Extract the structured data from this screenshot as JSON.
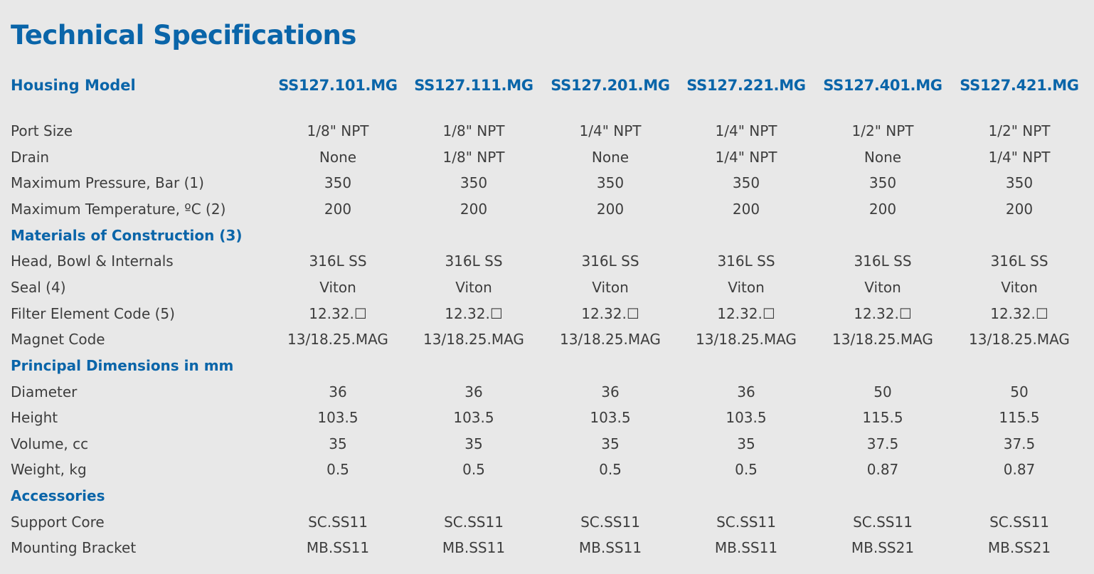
{
  "title": "Technical Specifications",
  "header": {
    "label": "Housing Model",
    "models": [
      "SS127.101.MG",
      "SS127.111.MG",
      "SS127.201.MG",
      "SS127.221.MG",
      "SS127.401.MG",
      "SS127.421.MG"
    ]
  },
  "rows": [
    {
      "type": "data",
      "label": "Port Size",
      "values": [
        "1/8\" NPT",
        "1/8\" NPT",
        "1/4\" NPT",
        "1/4\" NPT",
        "1/2\" NPT",
        "1/2\" NPT"
      ]
    },
    {
      "type": "data",
      "label": "Drain",
      "values": [
        "None",
        "1/8\" NPT",
        "None",
        "1/4\" NPT",
        "None",
        "1/4\" NPT"
      ]
    },
    {
      "type": "data",
      "label": "Maximum Pressure, Bar (1)",
      "values": [
        "350",
        "350",
        "350",
        "350",
        "350",
        "350"
      ]
    },
    {
      "type": "data",
      "label": "Maximum Temperature, ºC (2)",
      "values": [
        "200",
        "200",
        "200",
        "200",
        "200",
        "200"
      ]
    },
    {
      "type": "section",
      "label": "Materials of Construction (3)"
    },
    {
      "type": "data",
      "label": "Head, Bowl & Internals",
      "values": [
        "316L SS",
        "316L SS",
        "316L SS",
        "316L SS",
        "316L SS",
        "316L SS"
      ]
    },
    {
      "type": "data",
      "label": "Seal (4)",
      "values": [
        "Viton",
        "Viton",
        "Viton",
        "Viton",
        "Viton",
        "Viton"
      ]
    },
    {
      "type": "data",
      "label": "Filter Element Code (5)",
      "values": [
        "12.32.☐",
        "12.32.☐",
        "12.32.☐",
        "12.32.☐",
        "12.32.☐",
        "12.32.☐"
      ]
    },
    {
      "type": "data",
      "label": "Magnet Code",
      "values": [
        "13/18.25.MAG",
        "13/18.25.MAG",
        "13/18.25.MAG",
        "13/18.25.MAG",
        "13/18.25.MAG",
        "13/18.25.MAG"
      ]
    },
    {
      "type": "section",
      "label": "Principal Dimensions in mm"
    },
    {
      "type": "data",
      "label": "Diameter",
      "values": [
        "36",
        "36",
        "36",
        "36",
        "50",
        "50"
      ]
    },
    {
      "type": "data",
      "label": "Height",
      "values": [
        "103.5",
        "103.5",
        "103.5",
        "103.5",
        "115.5",
        "115.5"
      ]
    },
    {
      "type": "data",
      "label": "Volume, cc",
      "values": [
        "35",
        "35",
        "35",
        "35",
        "37.5",
        "37.5"
      ]
    },
    {
      "type": "data",
      "label": "Weight, kg",
      "values": [
        "0.5",
        "0.5",
        "0.5",
        "0.5",
        "0.87",
        "0.87"
      ]
    },
    {
      "type": "section",
      "label": "Accessories"
    },
    {
      "type": "data",
      "label": "Support Core",
      "values": [
        "SC.SS11",
        "SC.SS11",
        "SC.SS11",
        "SC.SS11",
        "SC.SS11",
        "SC.SS11"
      ]
    },
    {
      "type": "data",
      "label": "Mounting Bracket",
      "values": [
        "MB.SS11",
        "MB.SS11",
        "MB.SS11",
        "MB.SS11",
        "MB.SS21",
        "MB.SS21"
      ]
    }
  ]
}
